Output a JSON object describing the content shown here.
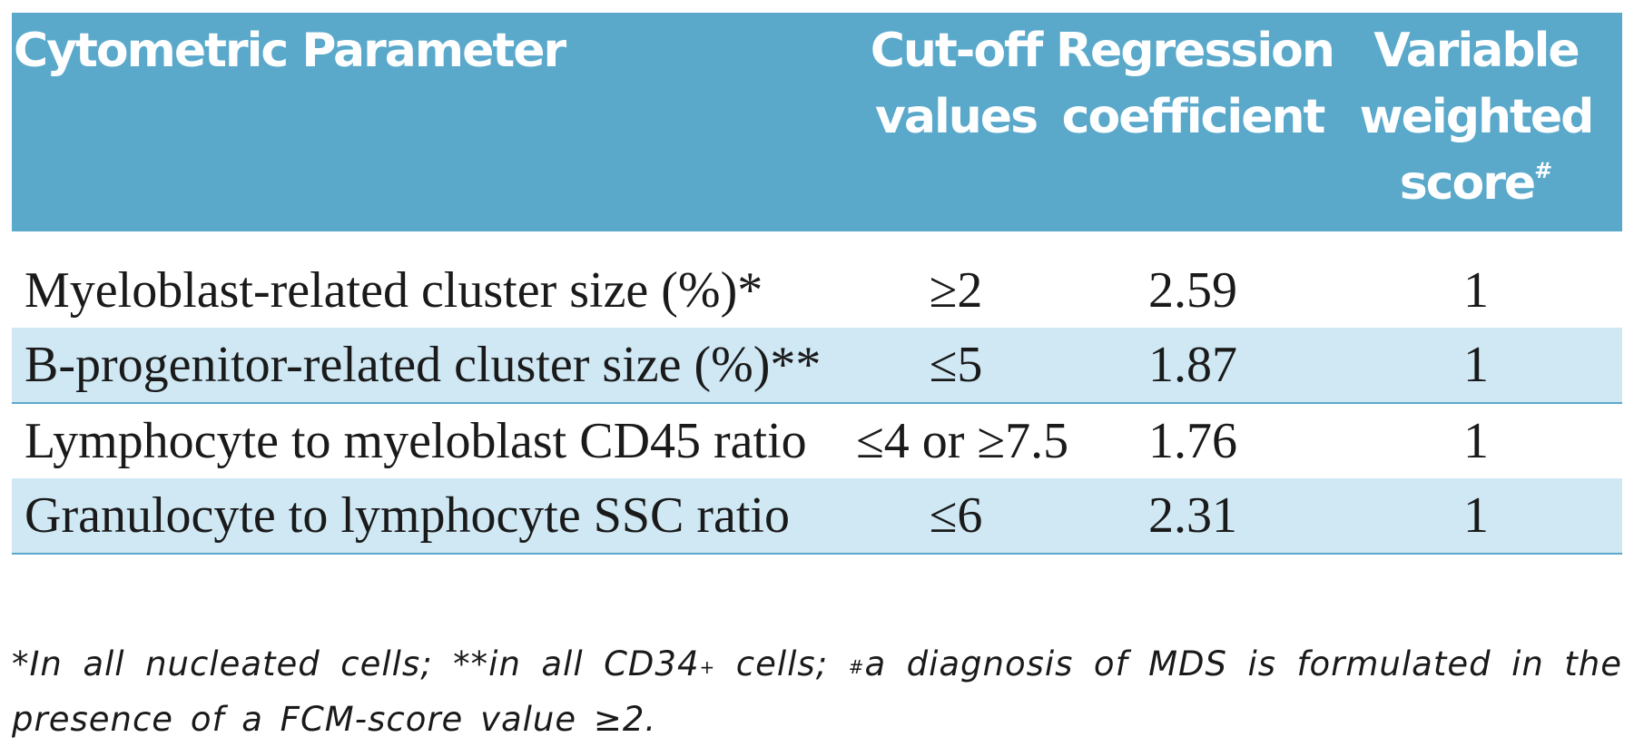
{
  "table": {
    "headers": {
      "parameter": "Cytometric Parameter",
      "cutoff_line1": "Cut-off",
      "cutoff_line2": "values",
      "regression_line1": "Regression",
      "regression_line2": "coefficient",
      "weighted_line1": "Variable",
      "weighted_line2": "weighted",
      "weighted_line3": "score",
      "weighted_mark": "#"
    },
    "rows": [
      {
        "parameter": "Myeloblast-related cluster size (%)*",
        "cutoff": "≥2",
        "coefficient": "2.59",
        "score": "1"
      },
      {
        "parameter": "B-progenitor-related cluster size (%)**",
        "cutoff": "≤5",
        "coefficient": "1.87",
        "score": "1"
      },
      {
        "parameter": "Lymphocyte to myeloblast CD45 ratio",
        "cutoff": "≤4 or ≥7.5",
        "coefficient": "1.76",
        "score": "1"
      },
      {
        "parameter": "Granulocyte to lymphocyte SSC ratio",
        "cutoff": "≤6",
        "coefficient": "2.31",
        "score": "1"
      }
    ]
  },
  "footnote": {
    "part1": "*In all nucleated cells; **in all CD34",
    "sup1": "+",
    "part2": " cells; ",
    "sup2": "#",
    "part3": "a diagnosis of MDS is formulated in the presence of a FCM-score value ≥2."
  },
  "colors": {
    "header_bg": "#5aa9cb",
    "row_shade": "#cfe8f4",
    "rule": "#5aa9cb"
  }
}
